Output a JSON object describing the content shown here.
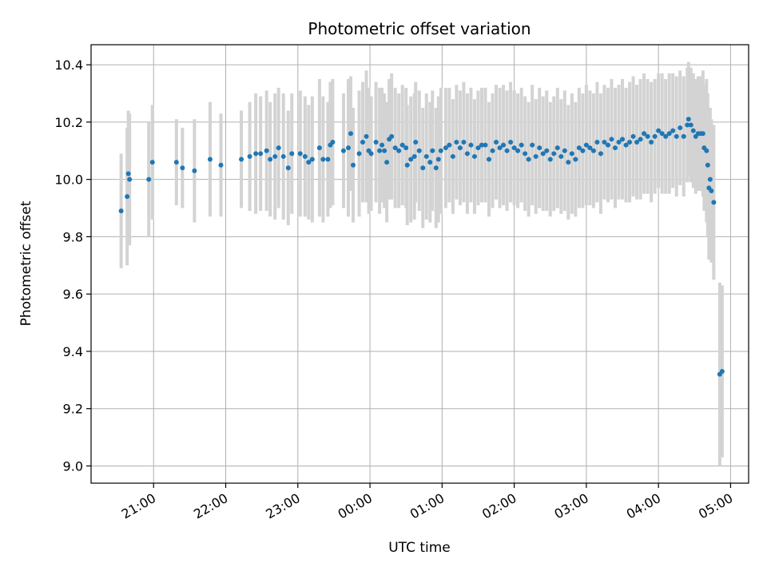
{
  "chart_data": {
    "type": "scatter",
    "title": "Photometric offset variation",
    "xlabel": "UTC time",
    "ylabel": "Photometric offset",
    "x_axis_kind": "time",
    "x_range": [
      "20:08",
      "05:15"
    ],
    "ylim": [
      8.94,
      10.47
    ],
    "x_tick_labels": [
      "21:00",
      "22:00",
      "23:00",
      "00:00",
      "01:00",
      "02:00",
      "03:00",
      "04:00",
      "05:00"
    ],
    "y_ticks": [
      9.0,
      9.2,
      9.4,
      9.6,
      9.8,
      10.0,
      10.2,
      10.4
    ],
    "y_tick_labels": [
      "9.0",
      "9.2",
      "9.4",
      "9.6",
      "9.8",
      "10.0",
      "10.2",
      "10.4"
    ],
    "grid": true,
    "colors": {
      "points": "#1f77b4",
      "errorbars": "#d3d3d3",
      "grid": "#b0b0b0"
    },
    "series": [
      {
        "columns": [
          "time",
          "value",
          "error"
        ],
        "points": [
          [
            "20:33",
            9.89,
            0.2
          ],
          [
            "20:38",
            9.94,
            0.24
          ],
          [
            "20:39",
            10.02,
            0.22
          ],
          [
            "20:40",
            10.0,
            0.23
          ],
          [
            "20:56",
            10.0,
            0.2
          ],
          [
            "20:59",
            10.06,
            0.2
          ],
          [
            "21:19",
            10.06,
            0.15
          ],
          [
            "21:24",
            10.04,
            0.14
          ],
          [
            "21:34",
            10.03,
            0.18
          ],
          [
            "21:47",
            10.07,
            0.2
          ],
          [
            "21:56",
            10.05,
            0.18
          ],
          [
            "22:13",
            10.07,
            0.17
          ],
          [
            "22:20",
            10.08,
            0.19
          ],
          [
            "22:25",
            10.09,
            0.21
          ],
          [
            "22:29",
            10.09,
            0.2
          ],
          [
            "22:34",
            10.1,
            0.21
          ],
          [
            "22:37",
            10.07,
            0.2
          ],
          [
            "22:41",
            10.08,
            0.22
          ],
          [
            "22:44",
            10.11,
            0.21
          ],
          [
            "22:48",
            10.08,
            0.22
          ],
          [
            "22:52",
            10.04,
            0.2
          ],
          [
            "22:55",
            10.09,
            0.21
          ],
          [
            "23:02",
            10.09,
            0.22
          ],
          [
            "23:06",
            10.08,
            0.21
          ],
          [
            "23:09",
            10.06,
            0.2
          ],
          [
            "23:12",
            10.07,
            0.22
          ],
          [
            "23:18",
            10.11,
            0.24
          ],
          [
            "23:21",
            10.07,
            0.22
          ],
          [
            "23:25",
            10.07,
            0.2
          ],
          [
            "23:27",
            10.12,
            0.22
          ],
          [
            "23:29",
            10.13,
            0.22
          ],
          [
            "23:38",
            10.1,
            0.2
          ],
          [
            "23:42",
            10.11,
            0.24
          ],
          [
            "23:44",
            10.16,
            0.2
          ],
          [
            "23:46",
            10.05,
            0.2
          ],
          [
            "23:51",
            10.09,
            0.22
          ],
          [
            "23:54",
            10.13,
            0.21
          ],
          [
            "23:57",
            10.15,
            0.23
          ],
          [
            "23:59",
            10.1,
            0.22
          ],
          [
            "00:01",
            10.09,
            0.2
          ],
          [
            "00:05",
            10.13,
            0.21
          ],
          [
            "00:08",
            10.1,
            0.22
          ],
          [
            "00:10",
            10.12,
            0.2
          ],
          [
            "00:12",
            10.1,
            0.2
          ],
          [
            "00:14",
            10.06,
            0.21
          ],
          [
            "00:16",
            10.14,
            0.21
          ],
          [
            "00:18",
            10.15,
            0.22
          ],
          [
            "00:21",
            10.11,
            0.21
          ],
          [
            "00:24",
            10.1,
            0.2
          ],
          [
            "00:27",
            10.12,
            0.21
          ],
          [
            "00:30",
            10.11,
            0.21
          ],
          [
            "00:31",
            10.05,
            0.21
          ],
          [
            "00:34",
            10.07,
            0.22
          ],
          [
            "00:37",
            10.08,
            0.22
          ],
          [
            "00:38",
            10.13,
            0.21
          ],
          [
            "00:41",
            10.1,
            0.21
          ],
          [
            "00:44",
            10.04,
            0.21
          ],
          [
            "00:47",
            10.08,
            0.22
          ],
          [
            "00:50",
            10.06,
            0.21
          ],
          [
            "00:52",
            10.1,
            0.21
          ],
          [
            "00:55",
            10.04,
            0.21
          ],
          [
            "00:57",
            10.07,
            0.22
          ],
          [
            "00:59",
            10.1,
            0.22
          ],
          [
            "01:03",
            10.11,
            0.21
          ],
          [
            "01:06",
            10.12,
            0.2
          ],
          [
            "01:09",
            10.08,
            0.2
          ],
          [
            "01:12",
            10.13,
            0.2
          ],
          [
            "01:15",
            10.11,
            0.2
          ],
          [
            "01:18",
            10.13,
            0.21
          ],
          [
            "01:21",
            10.09,
            0.21
          ],
          [
            "01:24",
            10.12,
            0.2
          ],
          [
            "01:27",
            10.08,
            0.2
          ],
          [
            "01:30",
            10.11,
            0.2
          ],
          [
            "01:33",
            10.12,
            0.2
          ],
          [
            "01:36",
            10.12,
            0.2
          ],
          [
            "01:39",
            10.07,
            0.2
          ],
          [
            "01:42",
            10.1,
            0.2
          ],
          [
            "01:45",
            10.13,
            0.2
          ],
          [
            "01:48",
            10.11,
            0.21
          ],
          [
            "01:51",
            10.12,
            0.21
          ],
          [
            "01:54",
            10.1,
            0.21
          ],
          [
            "01:57",
            10.13,
            0.21
          ],
          [
            "02:00",
            10.11,
            0.2
          ],
          [
            "02:03",
            10.1,
            0.2
          ],
          [
            "02:06",
            10.12,
            0.2
          ],
          [
            "02:09",
            10.09,
            0.2
          ],
          [
            "02:12",
            10.07,
            0.2
          ],
          [
            "02:15",
            10.12,
            0.21
          ],
          [
            "02:18",
            10.08,
            0.2
          ],
          [
            "02:21",
            10.11,
            0.21
          ],
          [
            "02:24",
            10.09,
            0.2
          ],
          [
            "02:27",
            10.1,
            0.21
          ],
          [
            "02:30",
            10.07,
            0.2
          ],
          [
            "02:33",
            10.09,
            0.2
          ],
          [
            "02:36",
            10.11,
            0.21
          ],
          [
            "02:39",
            10.08,
            0.2
          ],
          [
            "02:42",
            10.1,
            0.21
          ],
          [
            "02:45",
            10.06,
            0.2
          ],
          [
            "02:48",
            10.09,
            0.21
          ],
          [
            "02:51",
            10.07,
            0.2
          ],
          [
            "02:54",
            10.11,
            0.21
          ],
          [
            "02:57",
            10.1,
            0.2
          ],
          [
            "03:00",
            10.12,
            0.21
          ],
          [
            "03:03",
            10.11,
            0.2
          ],
          [
            "03:06",
            10.1,
            0.2
          ],
          [
            "03:09",
            10.13,
            0.21
          ],
          [
            "03:12",
            10.09,
            0.21
          ],
          [
            "03:15",
            10.13,
            0.2
          ],
          [
            "03:18",
            10.12,
            0.2
          ],
          [
            "03:21",
            10.14,
            0.21
          ],
          [
            "03:24",
            10.11,
            0.21
          ],
          [
            "03:27",
            10.13,
            0.2
          ],
          [
            "03:30",
            10.14,
            0.21
          ],
          [
            "03:33",
            10.12,
            0.2
          ],
          [
            "03:36",
            10.13,
            0.21
          ],
          [
            "03:39",
            10.15,
            0.21
          ],
          [
            "03:42",
            10.13,
            0.2
          ],
          [
            "03:45",
            10.14,
            0.21
          ],
          [
            "03:48",
            10.16,
            0.21
          ],
          [
            "03:51",
            10.15,
            0.2
          ],
          [
            "03:54",
            10.13,
            0.21
          ],
          [
            "03:57",
            10.15,
            0.2
          ],
          [
            "04:00",
            10.17,
            0.2
          ],
          [
            "04:03",
            10.16,
            0.21
          ],
          [
            "04:06",
            10.15,
            0.2
          ],
          [
            "04:09",
            10.16,
            0.21
          ],
          [
            "04:12",
            10.17,
            0.2
          ],
          [
            "04:15",
            10.15,
            0.21
          ],
          [
            "04:18",
            10.18,
            0.2
          ],
          [
            "04:21",
            10.15,
            0.21
          ],
          [
            "04:24",
            10.19,
            0.2
          ],
          [
            "04:25",
            10.21,
            0.2
          ],
          [
            "04:27",
            10.19,
            0.2
          ],
          [
            "04:29",
            10.17,
            0.2
          ],
          [
            "04:31",
            10.15,
            0.2
          ],
          [
            "04:33",
            10.16,
            0.2
          ],
          [
            "04:35",
            10.16,
            0.2
          ],
          [
            "04:37",
            10.16,
            0.22
          ],
          [
            "04:38",
            10.11,
            0.22
          ],
          [
            "04:40",
            10.1,
            0.25
          ],
          [
            "04:41",
            10.05,
            0.25
          ],
          [
            "04:42",
            9.97,
            0.25
          ],
          [
            "04:43",
            10.0,
            0.25
          ],
          [
            "04:44",
            9.96,
            0.25
          ],
          [
            "04:46",
            9.92,
            0.27
          ],
          [
            "04:51",
            9.32,
            0.32
          ],
          [
            "04:53",
            9.33,
            0.3
          ]
        ]
      }
    ]
  }
}
